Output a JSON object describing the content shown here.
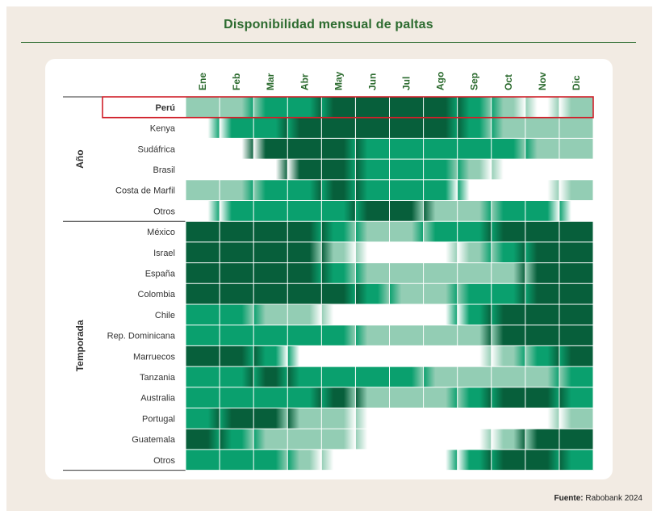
{
  "title": "Disponibilidad mensual de paltas",
  "source": {
    "label": "Fuente:",
    "value": "Rabobank 2024"
  },
  "colors": {
    "none": "#ffffff",
    "low": "#93cdb4",
    "medium": "#0aa06e",
    "high": "#075f3b",
    "highlight": "#d0202a",
    "title": "#2c6b2f"
  },
  "chart_data": {
    "type": "heatmap",
    "title": "Disponibilidad mensual de paltas",
    "months": [
      "Ene",
      "Feb",
      "Mar",
      "Abr",
      "May",
      "Jun",
      "Jul",
      "Ago",
      "Sep",
      "Oct",
      "Nov",
      "Dic"
    ],
    "scale": {
      "0": "none",
      "1": "low",
      "2": "medium",
      "3": "high"
    },
    "highlighted_row": "Perú",
    "groups": [
      {
        "name": "Año",
        "rows": [
          {
            "label": "Perú",
            "values": [
              1,
              1,
              2,
              2,
              3,
              3,
              3,
              3,
              2,
              1,
              0,
              1
            ]
          },
          {
            "label": "Kenya",
            "values": [
              0,
              2,
              2,
              3,
              3,
              3,
              3,
              3,
              2,
              1,
              1,
              1
            ]
          },
          {
            "label": "Sudáfrica",
            "values": [
              0,
              0,
              3,
              3,
              3,
              2,
              2,
              2,
              2,
              2,
              1,
              1
            ]
          },
          {
            "label": "Brasil",
            "values": [
              0,
              0,
              0,
              3,
              3,
              2,
              2,
              2,
              1,
              0,
              0,
              0
            ]
          },
          {
            "label": "Costa de Marfil",
            "values": [
              1,
              1,
              2,
              2,
              3,
              2,
              2,
              2,
              0,
              0,
              0,
              1
            ]
          },
          {
            "label": "Otros",
            "values": [
              0,
              2,
              2,
              2,
              2,
              3,
              3,
              1,
              1,
              2,
              2,
              0
            ]
          }
        ]
      },
      {
        "name": "Temporada",
        "rows": [
          {
            "label": "México",
            "values": [
              3,
              3,
              3,
              3,
              2,
              1,
              1,
              2,
              2,
              3,
              3,
              3
            ]
          },
          {
            "label": "Israel",
            "values": [
              3,
              3,
              3,
              3,
              1,
              0,
              0,
              0,
              1,
              2,
              3,
              3
            ]
          },
          {
            "label": "España",
            "values": [
              3,
              3,
              3,
              3,
              2,
              1,
              1,
              1,
              1,
              1,
              3,
              3
            ]
          },
          {
            "label": "Colombia",
            "values": [
              3,
              3,
              3,
              3,
              3,
              2,
              1,
              1,
              2,
              2,
              3,
              3
            ]
          },
          {
            "label": "Chile",
            "values": [
              2,
              2,
              1,
              1,
              0,
              0,
              0,
              0,
              2,
              3,
              3,
              3
            ]
          },
          {
            "label": "Rep. Dominicana",
            "values": [
              2,
              2,
              2,
              2,
              2,
              1,
              1,
              1,
              1,
              3,
              3,
              3
            ]
          },
          {
            "label": "Marruecos",
            "values": [
              3,
              3,
              2,
              0,
              0,
              0,
              0,
              0,
              0,
              1,
              2,
              3
            ]
          },
          {
            "label": "Tanzania",
            "values": [
              2,
              2,
              3,
              2,
              2,
              2,
              2,
              1,
              1,
              1,
              1,
              2
            ]
          },
          {
            "label": "Australia",
            "values": [
              2,
              2,
              2,
              2,
              3,
              1,
              1,
              1,
              2,
              3,
              3,
              2
            ]
          },
          {
            "label": "Portugal",
            "values": [
              2,
              3,
              3,
              1,
              1,
              0,
              0,
              0,
              0,
              0,
              0,
              1
            ]
          },
          {
            "label": "Guatemala",
            "values": [
              3,
              2,
              1,
              1,
              1,
              0,
              0,
              0,
              0,
              1,
              3,
              3
            ]
          },
          {
            "label": "Otros",
            "values": [
              2,
              2,
              2,
              1,
              0,
              0,
              0,
              0,
              2,
              3,
              3,
              2
            ]
          }
        ]
      }
    ]
  }
}
